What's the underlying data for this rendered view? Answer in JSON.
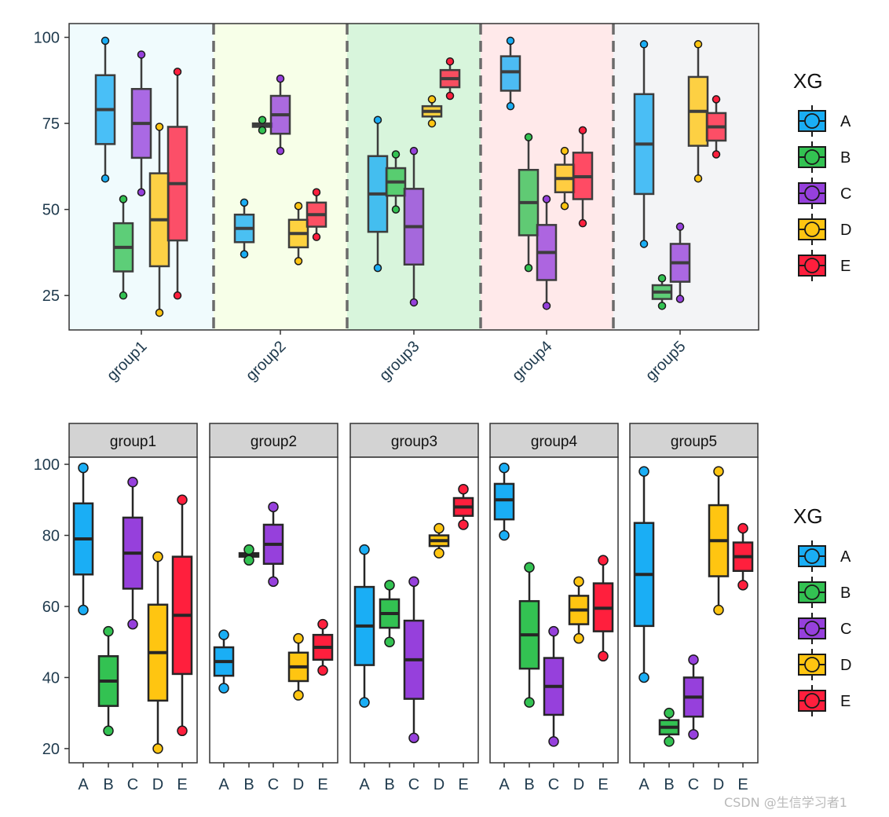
{
  "colors": {
    "A": "#1aaef5",
    "B": "#33c252",
    "C": "#9640dc",
    "D": "#ffc511",
    "E": "#ff1f3d"
  },
  "backgrounds": [
    "#f0fbfd",
    "#f7ffe8",
    "#d8f5dc",
    "#ffe9ea",
    "#f3f4f6"
  ],
  "chart_data": [
    {
      "type": "boxplot",
      "title": "",
      "xlabel": "",
      "ylabel": "",
      "ylim": [
        15,
        104
      ],
      "yticks": [
        25,
        50,
        75,
        100
      ],
      "categories": [
        "group1",
        "group2",
        "group3",
        "group4",
        "group5"
      ],
      "facet_strips": false,
      "legend": {
        "title": "XG",
        "position": "right"
      }
    },
    {
      "type": "boxplot",
      "title": "",
      "xlabel": "",
      "ylabel": "",
      "ylim": [
        16,
        102
      ],
      "yticks": [
        20,
        40,
        60,
        80,
        100
      ],
      "categories": [
        "group1",
        "group2",
        "group3",
        "group4",
        "group5"
      ],
      "facet_strips": true,
      "legend": {
        "title": "XG",
        "position": "right"
      }
    }
  ],
  "series_names": [
    "A",
    "B",
    "C",
    "D",
    "E"
  ],
  "box_stats": {
    "group1": [
      {
        "name": "A",
        "min": 59,
        "q1": 69,
        "median": 79,
        "q3": 89,
        "max": 99
      },
      {
        "name": "B",
        "min": 25,
        "q1": 32,
        "median": 39,
        "q3": 46,
        "max": 53
      },
      {
        "name": "C",
        "min": 55,
        "q1": 65,
        "median": 75,
        "q3": 85,
        "max": 95
      },
      {
        "name": "D",
        "min": 20,
        "q1": 33.5,
        "median": 47,
        "q3": 60.5,
        "max": 74
      },
      {
        "name": "E",
        "min": 25,
        "q1": 41,
        "median": 57.5,
        "q3": 74,
        "max": 90
      }
    ],
    "group2": [
      {
        "name": "A",
        "min": 37,
        "q1": 40.5,
        "median": 44.5,
        "q3": 48.5,
        "max": 52
      },
      {
        "name": "B",
        "min": 73,
        "q1": 74,
        "median": 74.5,
        "q3": 75,
        "max": 76
      },
      {
        "name": "C",
        "min": 67,
        "q1": 72,
        "median": 77.5,
        "q3": 83,
        "max": 88
      },
      {
        "name": "D",
        "min": 35,
        "q1": 39,
        "median": 43,
        "q3": 47,
        "max": 51
      },
      {
        "name": "E",
        "min": 42,
        "q1": 45,
        "median": 48.5,
        "q3": 52,
        "max": 55
      }
    ],
    "group3": [
      {
        "name": "A",
        "min": 33,
        "q1": 43.5,
        "median": 54.5,
        "q3": 65.5,
        "max": 76
      },
      {
        "name": "B",
        "min": 50,
        "q1": 54,
        "median": 58,
        "q3": 62,
        "max": 66
      },
      {
        "name": "C",
        "min": 23,
        "q1": 34,
        "median": 45,
        "q3": 56,
        "max": 67
      },
      {
        "name": "D",
        "min": 75,
        "q1": 77,
        "median": 78.5,
        "q3": 80,
        "max": 82
      },
      {
        "name": "E",
        "min": 83,
        "q1": 85.5,
        "median": 88,
        "q3": 90.5,
        "max": 93
      }
    ],
    "group4": [
      {
        "name": "A",
        "min": 80,
        "q1": 84.5,
        "median": 90,
        "q3": 94.5,
        "max": 99
      },
      {
        "name": "B",
        "min": 33,
        "q1": 42.5,
        "median": 52,
        "q3": 61.5,
        "max": 71
      },
      {
        "name": "C",
        "min": 22,
        "q1": 29.5,
        "median": 37.5,
        "q3": 45.5,
        "max": 53
      },
      {
        "name": "D",
        "min": 51,
        "q1": 55,
        "median": 59,
        "q3": 63,
        "max": 67
      },
      {
        "name": "E",
        "min": 46,
        "q1": 53,
        "median": 59.5,
        "q3": 66.5,
        "max": 73
      }
    ],
    "group5": [
      {
        "name": "A",
        "min": 40,
        "q1": 54.5,
        "median": 69,
        "q3": 83.5,
        "max": 98
      },
      {
        "name": "B",
        "min": 22,
        "q1": 24,
        "median": 26,
        "q3": 28,
        "max": 30
      },
      {
        "name": "C",
        "min": 24,
        "q1": 29,
        "median": 34.5,
        "q3": 40,
        "max": 45
      },
      {
        "name": "D",
        "min": 59,
        "q1": 68.5,
        "median": 78.5,
        "q3": 88.5,
        "max": 98
      },
      {
        "name": "E",
        "min": 66,
        "q1": 70,
        "median": 74,
        "q3": 78,
        "max": 82
      }
    ]
  },
  "watermark": "CSDN @生信学习者1"
}
